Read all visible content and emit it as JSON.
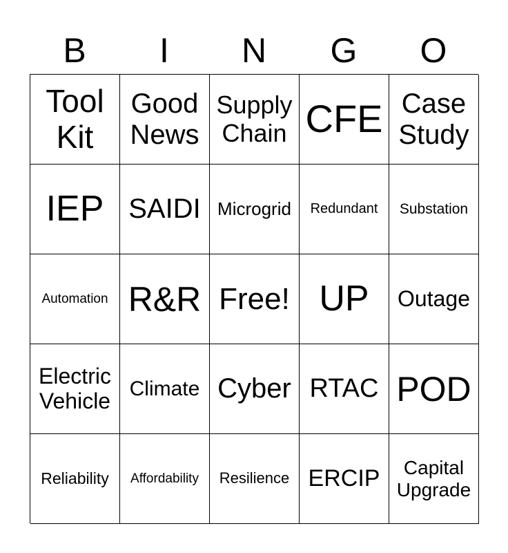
{
  "header": {
    "letters": [
      "B",
      "I",
      "N",
      "G",
      "O"
    ]
  },
  "cells": [
    [
      "Tool Kit",
      "Good News",
      "Supply Chain",
      "CFE",
      "Case Study"
    ],
    [
      "IEP",
      "SAIDI",
      "Microgrid",
      "Redundant",
      "Substation"
    ],
    [
      "Automation",
      "R&R",
      "Free!",
      "UP",
      "Outage"
    ],
    [
      "Electric Vehicle",
      "Climate",
      "Cyber",
      "RTAC",
      "POD"
    ],
    [
      "Reliability",
      "Affordability",
      "Resilience",
      "ERCIP",
      "Capital Upgrade"
    ]
  ]
}
